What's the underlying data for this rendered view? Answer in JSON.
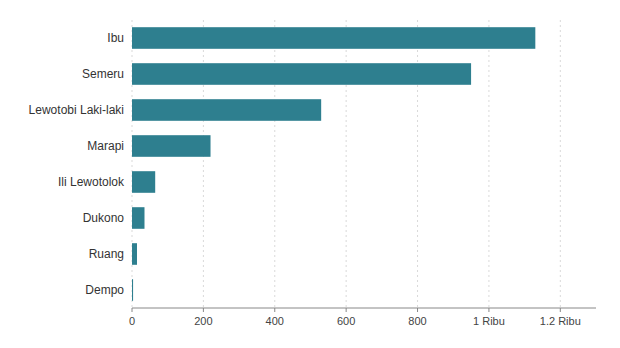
{
  "chart_data": {
    "type": "bar",
    "orientation": "horizontal",
    "categories": [
      "Dempo",
      "Ruang",
      "Dukono",
      "Ili Lewotolok",
      "Marapi",
      "Lewotobi Laki-laki",
      "Semeru",
      "Ibu"
    ],
    "values": [
      3,
      14,
      35,
      65,
      220,
      530,
      950,
      1130
    ],
    "color": "#2e7f8f",
    "xlim": [
      0,
      1300
    ],
    "xticks": [
      0,
      200,
      400,
      600,
      800,
      {
        "value": 1000,
        "label": "1 Ribu"
      },
      {
        "value": 1200,
        "label": "1.2 Ribu"
      }
    ],
    "grid": true
  }
}
